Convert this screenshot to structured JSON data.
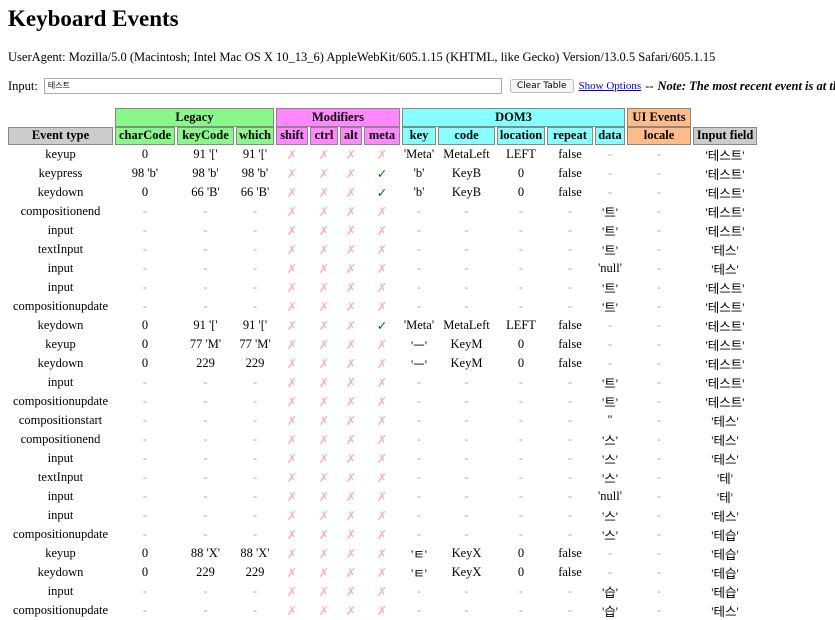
{
  "header": {
    "title": "Keyboard Events",
    "useragent": "UserAgent: Mozilla/5.0 (Macintosh; Intel Mac OS X 10_13_6) AppleWebKit/605.1.15 (KHTML, like Gecko) Version/13.0.5 Safari/605.1.15"
  },
  "controls": {
    "input_label": "Input:",
    "input_value": "테스트",
    "button": "Clear Table",
    "link": "Show Options",
    "dash": "--",
    "note": "Note: The most recent event is at the top"
  },
  "table": {
    "groups": [
      {
        "label": "Legacy",
        "span": 3
      },
      {
        "label": "Modifiers",
        "span": 4
      },
      {
        "label": "DOM3",
        "span": 5
      },
      {
        "label": "UI Events",
        "span": 1
      }
    ],
    "columns": [
      "Event type",
      "charCode",
      "keyCode",
      "which",
      "shift",
      "ctrl",
      "alt",
      "meta",
      "key",
      "code",
      "location",
      "repeat",
      "data",
      "locale",
      "Input field"
    ],
    "rows": [
      [
        "keyup",
        "0",
        "91 '['",
        "91 '['",
        "✗",
        "✗",
        "✗",
        "✗",
        "'Meta'",
        "MetaLeft",
        "LEFT",
        "false",
        "-",
        "-",
        "'테스트'"
      ],
      [
        "keypress",
        "98 'b'",
        "98 'b'",
        "98 'b'",
        "✗",
        "✗",
        "✗",
        "✓",
        "'b'",
        "KeyB",
        "0",
        "false",
        "-",
        "-",
        "'테스트'"
      ],
      [
        "keydown",
        "0",
        "66 'B'",
        "66 'B'",
        "✗",
        "✗",
        "✗",
        "✓",
        "'b'",
        "KeyB",
        "0",
        "false",
        "-",
        "-",
        "'테스트'"
      ],
      [
        "compositionend",
        "-",
        "-",
        "-",
        "✗",
        "✗",
        "✗",
        "✗",
        "-",
        "-",
        "-",
        "-",
        "'트'",
        "-",
        "'테스트'"
      ],
      [
        "input",
        "-",
        "-",
        "-",
        "✗",
        "✗",
        "✗",
        "✗",
        "-",
        "-",
        "-",
        "-",
        "'트'",
        "-",
        "'테스트'"
      ],
      [
        "textInput",
        "-",
        "-",
        "-",
        "✗",
        "✗",
        "✗",
        "✗",
        "-",
        "-",
        "-",
        "-",
        "'트'",
        "-",
        "'테스'"
      ],
      [
        "input",
        "-",
        "-",
        "-",
        "✗",
        "✗",
        "✗",
        "✗",
        "-",
        "-",
        "-",
        "-",
        "'null'",
        "-",
        "'테스'"
      ],
      [
        "input",
        "-",
        "-",
        "-",
        "✗",
        "✗",
        "✗",
        "✗",
        "-",
        "-",
        "-",
        "-",
        "'트'",
        "-",
        "'테스트'"
      ],
      [
        "compositionupdate",
        "-",
        "-",
        "-",
        "✗",
        "✗",
        "✗",
        "✗",
        "-",
        "-",
        "-",
        "-",
        "'트'",
        "-",
        "'테스트'"
      ],
      [
        "keydown",
        "0",
        "91 '['",
        "91 '['",
        "✗",
        "✗",
        "✗",
        "✓",
        "'Meta'",
        "MetaLeft",
        "LEFT",
        "false",
        "-",
        "-",
        "'테스트'"
      ],
      [
        "keyup",
        "0",
        "77 'M'",
        "77 'M'",
        "✗",
        "✗",
        "✗",
        "✗",
        "'ㅡ'",
        "KeyM",
        "0",
        "false",
        "-",
        "-",
        "'테스트'"
      ],
      [
        "keydown",
        "0",
        "229",
        "229",
        "✗",
        "✗",
        "✗",
        "✗",
        "'ㅡ'",
        "KeyM",
        "0",
        "false",
        "-",
        "-",
        "'테스트'"
      ],
      [
        "input",
        "-",
        "-",
        "-",
        "✗",
        "✗",
        "✗",
        "✗",
        "-",
        "-",
        "-",
        "-",
        "'트'",
        "-",
        "'테스트'"
      ],
      [
        "compositionupdate",
        "-",
        "-",
        "-",
        "✗",
        "✗",
        "✗",
        "✗",
        "-",
        "-",
        "-",
        "-",
        "'트'",
        "-",
        "'테스트'"
      ],
      [
        "compositionstart",
        "-",
        "-",
        "-",
        "✗",
        "✗",
        "✗",
        "✗",
        "-",
        "-",
        "-",
        "-",
        "''",
        "-",
        "'테스'"
      ],
      [
        "compositionend",
        "-",
        "-",
        "-",
        "✗",
        "✗",
        "✗",
        "✗",
        "-",
        "-",
        "-",
        "-",
        "'스'",
        "-",
        "'테스'"
      ],
      [
        "input",
        "-",
        "-",
        "-",
        "✗",
        "✗",
        "✗",
        "✗",
        "-",
        "-",
        "-",
        "-",
        "'스'",
        "-",
        "'테스'"
      ],
      [
        "textInput",
        "-",
        "-",
        "-",
        "✗",
        "✗",
        "✗",
        "✗",
        "-",
        "-",
        "-",
        "-",
        "'스'",
        "-",
        "'테'"
      ],
      [
        "input",
        "-",
        "-",
        "-",
        "✗",
        "✗",
        "✗",
        "✗",
        "-",
        "-",
        "-",
        "-",
        "'null'",
        "-",
        "'테'"
      ],
      [
        "input",
        "-",
        "-",
        "-",
        "✗",
        "✗",
        "✗",
        "✗",
        "-",
        "-",
        "-",
        "-",
        "'스'",
        "-",
        "'테스'"
      ],
      [
        "compositionupdate",
        "-",
        "-",
        "-",
        "✗",
        "✗",
        "✗",
        "✗",
        "-",
        "-",
        "-",
        "-",
        "'스'",
        "-",
        "'테습'"
      ],
      [
        "keyup",
        "0",
        "88 'X'",
        "88 'X'",
        "✗",
        "✗",
        "✗",
        "✗",
        "'ㅌ'",
        "KeyX",
        "0",
        "false",
        "-",
        "-",
        "'테습'"
      ],
      [
        "keydown",
        "0",
        "229",
        "229",
        "✗",
        "✗",
        "✗",
        "✗",
        "'ㅌ'",
        "KeyX",
        "0",
        "false",
        "-",
        "-",
        "'테습'"
      ],
      [
        "input",
        "-",
        "-",
        "-",
        "✗",
        "✗",
        "✗",
        "✗",
        "-",
        "-",
        "-",
        "-",
        "'습'",
        "-",
        "'테습'"
      ],
      [
        "compositionupdate",
        "-",
        "-",
        "-",
        "✗",
        "✗",
        "✗",
        "✗",
        "-",
        "-",
        "-",
        "-",
        "'습'",
        "-",
        "'테스'"
      ]
    ]
  }
}
